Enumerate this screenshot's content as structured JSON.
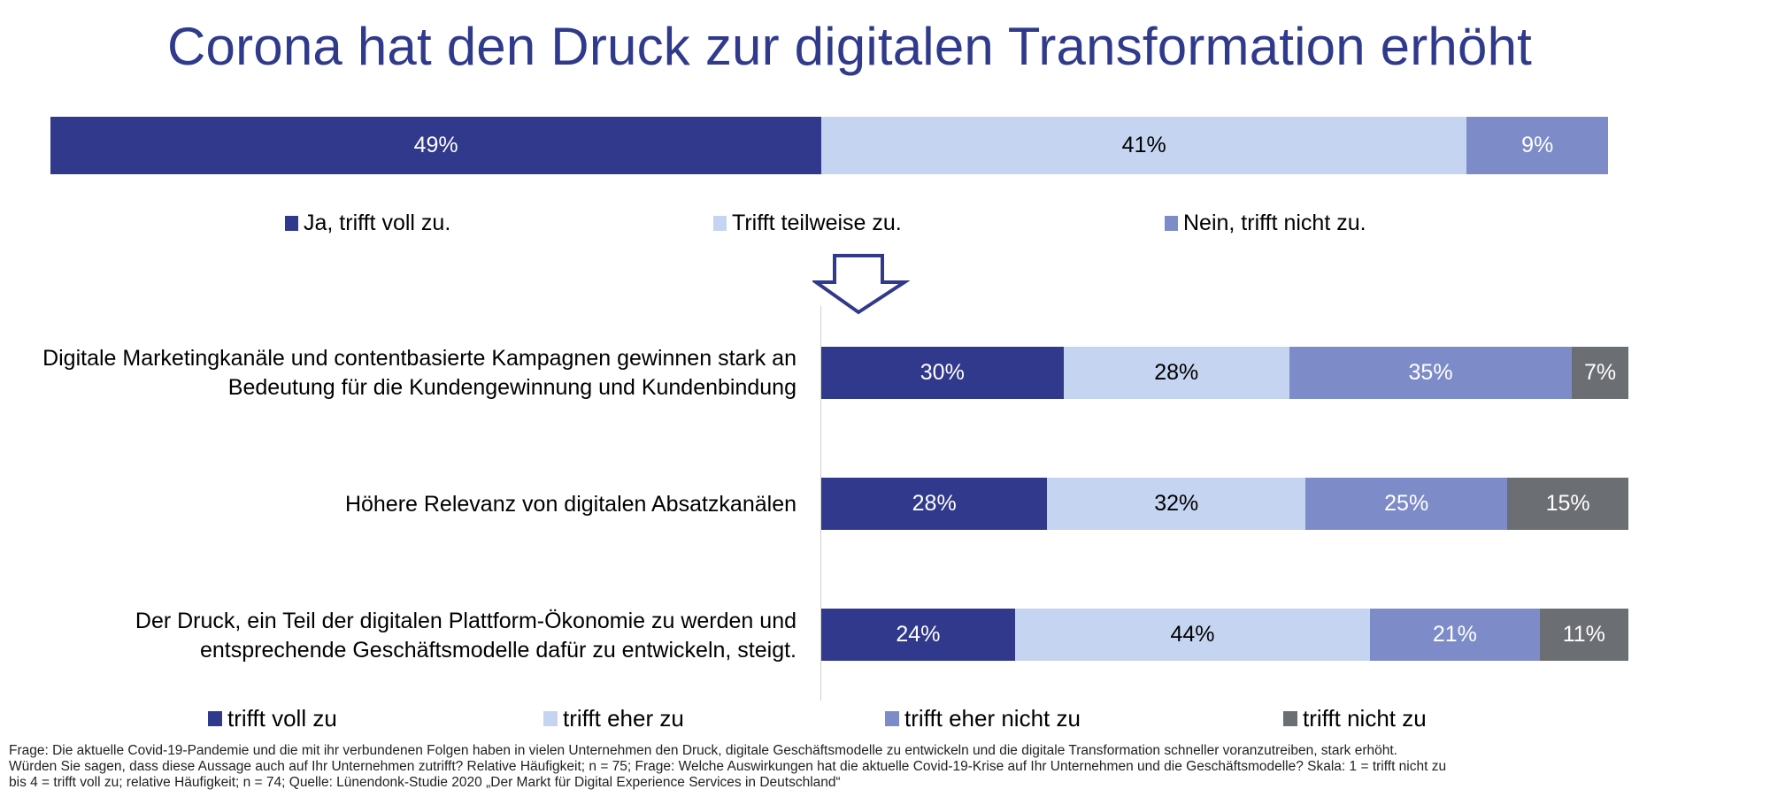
{
  "colors": {
    "title": "#2f3a8c",
    "voll": "#30398b",
    "teilweise": "#c5d5f1",
    "nicht": "#7d8cc9",
    "nicht_zu": "#6b6e72"
  },
  "chart_data": [
    {
      "type": "bar",
      "orientation": "horizontal-stacked",
      "title": "Corona hat den Druck zur digitalen Transformation erhöht",
      "categories": [
        "Corona hat den Druck zur digitalen Transformation erhöht"
      ],
      "series": [
        {
          "name": "Ja, trifft voll zu.",
          "values": [
            49
          ],
          "label": "49%",
          "color": "#30398b",
          "text_color": "#ffffff"
        },
        {
          "name": "Trifft teilweise zu.",
          "values": [
            41
          ],
          "label": "41%",
          "color": "#c5d5f1",
          "text_color": "#000000"
        },
        {
          "name": "Nein, trifft nicht zu.",
          "values": [
            9
          ],
          "label": "9%",
          "color": "#7d8cc9",
          "text_color": "#ffffff"
        }
      ],
      "unit": "%",
      "legend_position": "bottom"
    },
    {
      "type": "bar",
      "orientation": "horizontal-stacked",
      "categories": [
        "Digitale Marketingkanäle und contentbasierte Kampagnen gewinnen stark an Bedeutung für die Kundengewinnung und Kundenbindung",
        "Höhere Relevanz von digitalen Absatzkanälen",
        "Der Druck, ein Teil der digitalen Plattform-Ökonomie zu werden und entsprechende Geschäftsmodelle dafür zu entwickeln, steigt."
      ],
      "category_lines": [
        [
          "Digitale Marketingkanäle und contentbasierte Kampagnen gewinnen stark an",
          "Bedeutung für die Kundengewinnung und Kundenbindung"
        ],
        [
          "Höhere Relevanz von digitalen Absatzkanälen"
        ],
        [
          "Der Druck, ein Teil der digitalen Plattform-Ökonomie zu werden und",
          "entsprechende Geschäftsmodelle dafür zu entwickeln, steigt."
        ]
      ],
      "series": [
        {
          "name": "trifft voll zu",
          "values": [
            30,
            28,
            24
          ],
          "color": "#30398b",
          "text_color": "#ffffff"
        },
        {
          "name": "trifft eher zu",
          "values": [
            28,
            32,
            44
          ],
          "color": "#c5d5f1",
          "text_color": "#000000"
        },
        {
          "name": "trifft eher nicht zu",
          "values": [
            35,
            25,
            21
          ],
          "color": "#7d8cc9",
          "text_color": "#ffffff"
        },
        {
          "name": "trifft nicht zu",
          "values": [
            7,
            15,
            11
          ],
          "color": "#6b6e72",
          "text_color": "#ffffff"
        }
      ],
      "unit": "%",
      "legend_position": "bottom"
    }
  ],
  "footnote": {
    "lines": [
      "Frage: Die aktuelle Covid-19-Pandemie und die mit ihr verbundenen Folgen haben in vielen Unternehmen den Druck, digitale Geschäftsmodelle zu entwickeln und die digitale Transformation schneller voranzutreiben, stark erhöht.",
      "Würden Sie sagen, dass diese Aussage auch auf Ihr Unternehmen zutrifft? Relative Häufigkeit; n = 75; Frage: Welche Auswirkungen hat die aktuelle Covid-19-Krise auf Ihr Unternehmen und die Geschäftsmodelle? Skala: 1 = trifft nicht zu",
      "bis 4 = trifft voll zu; relative Häufigkeit; n = 74; Quelle: Lünendonk-Studie 2020 „Der Markt für Digital Experience Services in Deutschland“"
    ]
  }
}
